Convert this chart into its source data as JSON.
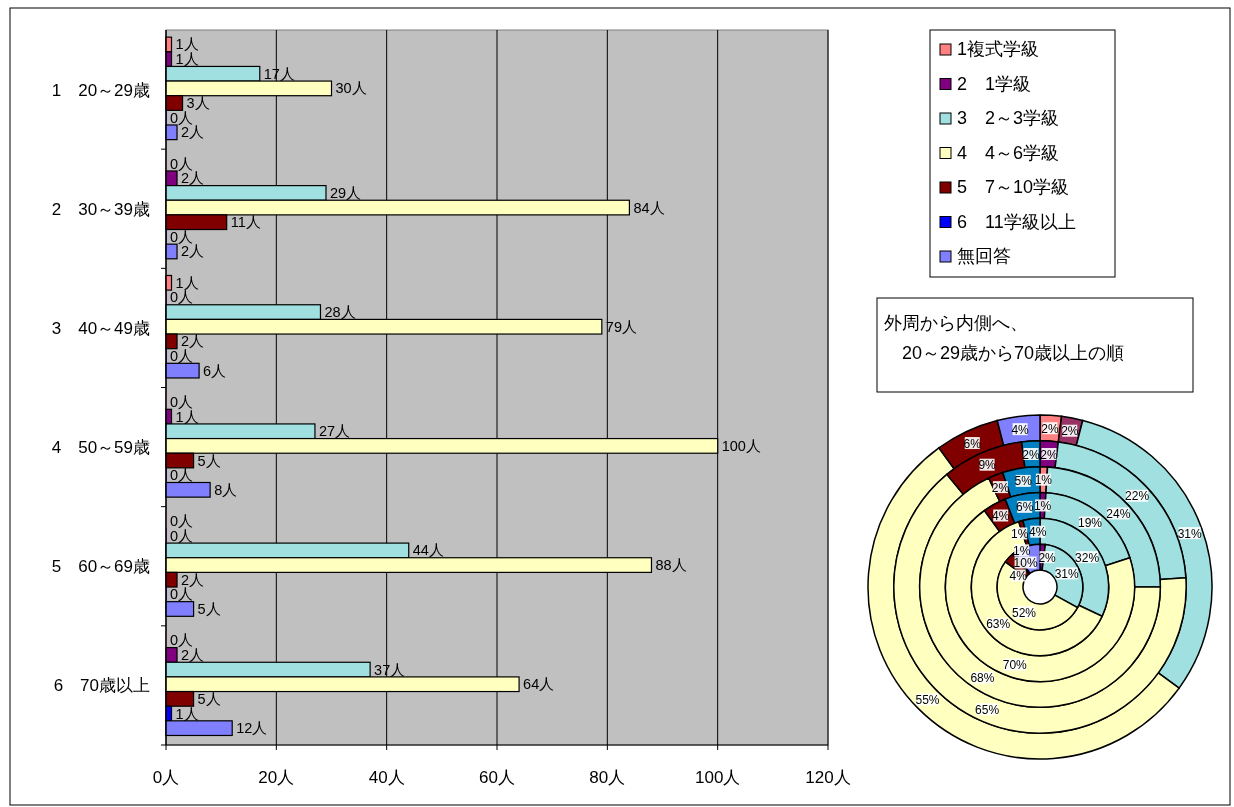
{
  "chart_data": [
    {
      "type": "bar",
      "orientation": "horizontal",
      "categories": [
        "1　20～29歳",
        "2　30～39歳",
        "3　40～49歳",
        "4　50～59歳",
        "5　60～69歳",
        "6　70歳以上"
      ],
      "xlim": [
        0,
        120
      ],
      "xticks": [
        {
          "value": 0,
          "label": "0人"
        },
        {
          "value": 20,
          "label": "20人"
        },
        {
          "value": 40,
          "label": "40人"
        },
        {
          "value": 60,
          "label": "60人"
        },
        {
          "value": 80,
          "label": "80人"
        },
        {
          "value": 100,
          "label": "100人"
        },
        {
          "value": 120,
          "label": "120人"
        }
      ],
      "grid": "x",
      "legend": "right",
      "series": [
        {
          "name": "1複式学級",
          "color": "#ff8080",
          "values": [
            1,
            0,
            1,
            0,
            0,
            0
          ],
          "value_labels": [
            "1人",
            "0人",
            "1人",
            "0人",
            "0人",
            "0人"
          ]
        },
        {
          "name": "2　1学級",
          "color": "#800080",
          "values": [
            1,
            2,
            0,
            1,
            0,
            2
          ],
          "value_labels": [
            "1人",
            "2人",
            "0人",
            "1人",
            "0人",
            "2人"
          ]
        },
        {
          "name": "3　2～3学級",
          "color": "#a0e0e0",
          "values": [
            17,
            29,
            28,
            27,
            44,
            37
          ],
          "value_labels": [
            "17人",
            "29人",
            "28人",
            "27人",
            "44人",
            "37人"
          ]
        },
        {
          "name": "4　4～6学級",
          "color": "#ffffc0",
          "values": [
            30,
            84,
            79,
            100,
            88,
            64
          ],
          "value_labels": [
            "30人",
            "84人",
            "79人",
            "100人",
            "88人",
            "64人"
          ]
        },
        {
          "name": "5　7～10学級",
          "color": "#800000",
          "values": [
            3,
            11,
            2,
            5,
            2,
            5
          ],
          "value_labels": [
            "3人",
            "11人",
            "2人",
            "5人",
            "2人",
            "5人"
          ]
        },
        {
          "name": "6　11学級以上",
          "color": "#0000ff",
          "values": [
            0,
            0,
            0,
            0,
            0,
            1
          ],
          "value_labels": [
            "0人",
            "0人",
            "0人",
            "0人",
            "0人",
            "1人"
          ]
        },
        {
          "name": "無回答",
          "color": "#8080ff",
          "values": [
            2,
            2,
            6,
            8,
            5,
            12
          ],
          "value_labels": [
            "2人",
            "2人",
            "6人",
            "8人",
            "5人",
            "12人"
          ]
        }
      ]
    },
    {
      "type": "donut",
      "categories": [
        null,
        null,
        null,
        null,
        null,
        null,
        null
      ],
      "annotations": [
        "外周から内側へ、",
        "　20～29歳から70歳以上の順"
      ],
      "series": [
        {
          "values": [
            2,
            2,
            31,
            55,
            6,
            0,
            4
          ],
          "value_labels": [
            "2%",
            "2%",
            "31%",
            "55%",
            "6%",
            null,
            "4%"
          ],
          "colors": [
            "#ff8080",
            "#993366",
            "#a0e0e0",
            "#ffffc0",
            "#800000",
            "#0000ff",
            "#8080ff"
          ]
        },
        {
          "values": [
            0,
            2,
            22,
            65,
            9,
            0,
            2
          ],
          "value_labels": [
            null,
            "2%",
            "22%",
            "65%",
            "9%",
            null,
            "2%"
          ],
          "colors": [
            "#ff8080",
            "#800080",
            "#a0e0e0",
            "#ffffc0",
            "#800000",
            "#0000ff",
            "#0080c0"
          ]
        },
        {
          "values": [
            1,
            0,
            24,
            68,
            2,
            0,
            5
          ],
          "value_labels": [
            "1%",
            null,
            "24%",
            "68%",
            "2%",
            null,
            "5%"
          ],
          "colors": [
            "#ff8080",
            "#800080",
            "#a0e0e0",
            "#ffffc0",
            "#800000",
            "#0000ff",
            "#0080c0"
          ]
        },
        {
          "values": [
            0,
            1,
            19,
            70,
            4,
            0,
            6
          ],
          "value_labels": [
            null,
            "1%",
            "19%",
            "70%",
            "4%",
            null,
            "6%"
          ],
          "colors": [
            "#ff8080",
            "#800080",
            "#a0e0e0",
            "#ffffc0",
            "#800000",
            "#0000ff",
            "#0080c0"
          ]
        },
        {
          "values": [
            0,
            0,
            32,
            63,
            1,
            0,
            4
          ],
          "value_labels": [
            null,
            null,
            "32%",
            "63%",
            "1%",
            null,
            "4%"
          ],
          "colors": [
            "#ff8080",
            "#800080",
            "#a0e0e0",
            "#ffffc0",
            "#800000",
            "#0000ff",
            "#0080c0"
          ]
        },
        {
          "values": [
            0,
            2,
            31,
            52,
            4,
            1,
            10
          ],
          "value_labels": [
            null,
            "2%",
            "31%",
            "52%",
            "4%",
            "1%",
            "10%"
          ],
          "colors": [
            "#ff8080",
            "#800080",
            "#a0e0e0",
            "#ffffc0",
            "#800000",
            "#0000ff",
            "#8080ff"
          ]
        }
      ]
    }
  ]
}
